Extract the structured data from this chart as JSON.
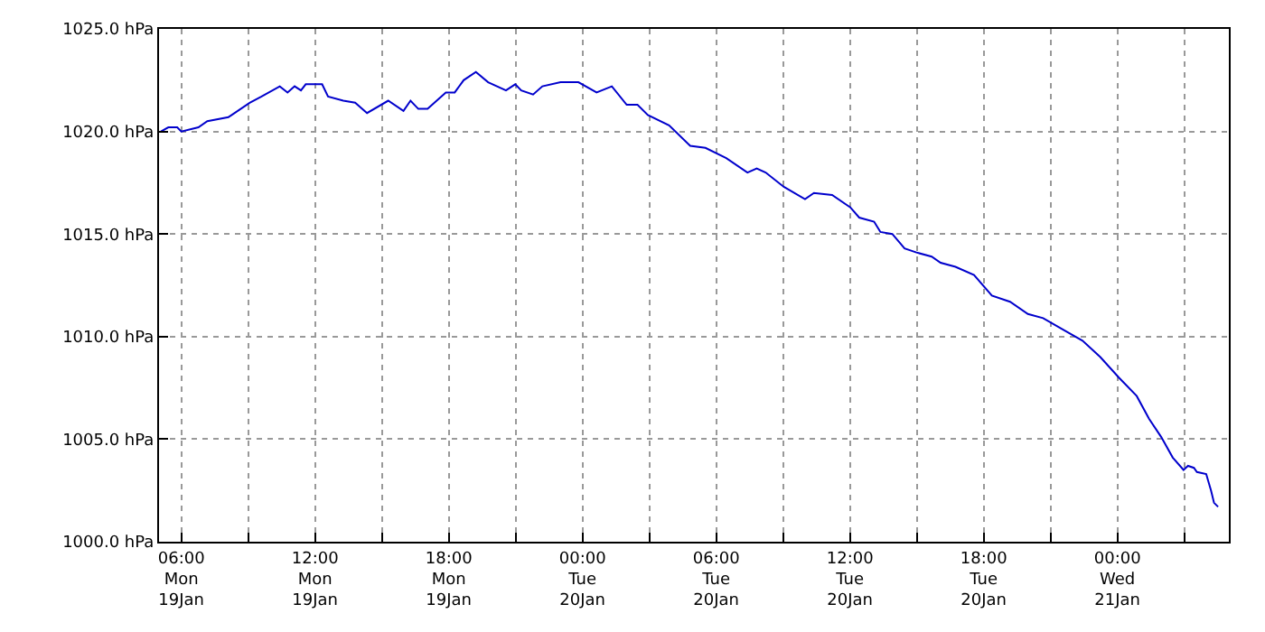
{
  "chart_data": {
    "type": "line",
    "color": "#0000cc",
    "grid": true,
    "marker": "none",
    "line_style": "solid",
    "x": [
      "--01-19T05:05",
      "--01-19T05:25",
      "--01-19T05:49",
      "--01-19T06:00",
      "--01-19T06:46",
      "--01-19T07:10",
      "--01-19T08:07",
      "--01-19T09:04",
      "--01-19T09:36",
      "--01-19T10:25",
      "--01-19T10:46",
      "--01-19T11:05",
      "--01-19T11:22",
      "--01-19T11:35",
      "--01-19T12:19",
      "--01-19T12:35",
      "--01-19T13:16",
      "--01-19T13:48",
      "--01-19T14:20",
      "--01-19T15:17",
      "--01-19T15:58",
      "--01-19T16:17",
      "--01-19T16:38",
      "--01-19T17:03",
      "--01-19T17:52",
      "--01-19T18:16",
      "--01-19T18:40",
      "--01-19T19:13",
      "--01-19T19:46",
      "--01-19T20:34",
      "--01-19T20:59",
      "--01-19T21:15",
      "--01-19T21:47",
      "--01-19T22:12",
      "--01-19T23:01",
      "--01-19T23:49",
      "--01-20T00:38",
      "--01-20T01:19",
      "--01-20T01:59",
      "--01-20T02:28",
      "--01-20T02:56",
      "--01-20T03:53",
      "--01-20T04:50",
      "--01-20T05:31",
      "--01-20T06:27",
      "--01-20T07:24",
      "--01-20T07:49",
      "--01-20T08:13",
      "--01-20T09:02",
      "--01-20T09:59",
      "--01-20T10:23",
      "--01-20T11:12",
      "--01-20T12:01",
      "--01-20T12:25",
      "--01-20T13:05",
      "--01-20T13:22",
      "--01-20T13:54",
      "--01-20T14:27",
      "--01-20T14:59",
      "--01-20T15:40",
      "--01-20T16:04",
      "--01-20T16:44",
      "--01-20T17:34",
      "--01-20T18:22",
      "--01-20T19:11",
      "--01-20T19:59",
      "--01-20T20:40",
      "--01-20T21:37",
      "--01-20T22:26",
      "--01-20T23:14",
      "--01-21T00:04",
      "--01-21T00:52",
      "--01-21T01:25",
      "--01-21T01:58",
      "--01-21T02:29",
      "--01-21T02:58",
      "--01-21T03:10",
      "--01-21T03:26",
      "--01-21T03:34",
      "--01-21T03:59",
      "--01-21T04:12",
      "--01-21T04:20",
      "--01-21T04:31"
    ],
    "values": [
      1020.0,
      1020.2,
      1020.2,
      1020.0,
      1020.2,
      1020.5,
      1020.7,
      1021.4,
      1021.7,
      1022.2,
      1021.9,
      1022.2,
      1022.0,
      1022.3,
      1022.3,
      1021.7,
      1021.5,
      1021.4,
      1020.9,
      1021.5,
      1021.0,
      1021.5,
      1021.1,
      1021.1,
      1021.9,
      1021.9,
      1022.5,
      1022.9,
      1022.4,
      1022.0,
      1022.3,
      1022.0,
      1021.8,
      1022.2,
      1022.4,
      1022.4,
      1021.9,
      1022.2,
      1021.3,
      1021.3,
      1020.8,
      1020.3,
      1019.3,
      1019.2,
      1018.7,
      1018.0,
      1018.2,
      1018.0,
      1017.3,
      1016.7,
      1017.0,
      1016.9,
      1016.3,
      1015.8,
      1015.6,
      1015.1,
      1015.0,
      1014.3,
      1014.1,
      1013.9,
      1013.6,
      1013.4,
      1013.0,
      1012.0,
      1011.7,
      1011.1,
      1010.9,
      1010.3,
      1009.8,
      1009.0,
      1008.0,
      1007.1,
      1006.0,
      1005.1,
      1004.1,
      1003.5,
      1003.7,
      1003.6,
      1003.4,
      1003.3,
      1002.5,
      1001.9,
      1001.7
    ],
    "xlim": [
      "--01-19T05:00",
      "--01-21T05:00"
    ],
    "xticks": [
      {
        "value": "--01-19T06:00",
        "label": "06:00\nMon\n19Jan"
      },
      {
        "value": "--01-19T09:00",
        "label": null
      },
      {
        "value": "--01-19T12:00",
        "label": "12:00\nMon\n19Jan"
      },
      {
        "value": "--01-19T15:00",
        "label": null
      },
      {
        "value": "--01-19T18:00",
        "label": "18:00\nMon\n19Jan"
      },
      {
        "value": "--01-19T21:00",
        "label": null
      },
      {
        "value": "--01-20T00:00",
        "label": "00:00\nTue\n20Jan"
      },
      {
        "value": "--01-20T03:00",
        "label": null
      },
      {
        "value": "--01-20T06:00",
        "label": "06:00\nTue\n20Jan"
      },
      {
        "value": "--01-20T09:00",
        "label": null
      },
      {
        "value": "--01-20T12:00",
        "label": "12:00\nTue\n20Jan"
      },
      {
        "value": "--01-20T15:00",
        "label": null
      },
      {
        "value": "--01-20T18:00",
        "label": "18:00\nTue\n20Jan"
      },
      {
        "value": "--01-20T21:00",
        "label": null
      },
      {
        "value": "--01-21T00:00",
        "label": "00:00\nWed\n21Jan"
      },
      {
        "value": "--01-21T03:00",
        "label": null
      }
    ],
    "ylim": [
      1000,
      1025
    ],
    "yticks": [
      {
        "value": 1000,
        "label": "1000.0 hPa"
      },
      {
        "value": 1005,
        "label": "1005.0 hPa"
      },
      {
        "value": 1010,
        "label": "1010.0 hPa"
      },
      {
        "value": 1015,
        "label": "1015.0 hPa"
      },
      {
        "value": 1020,
        "label": "1020.0 hPa"
      },
      {
        "value": 1025,
        "label": "1025.0 hPa"
      }
    ]
  }
}
